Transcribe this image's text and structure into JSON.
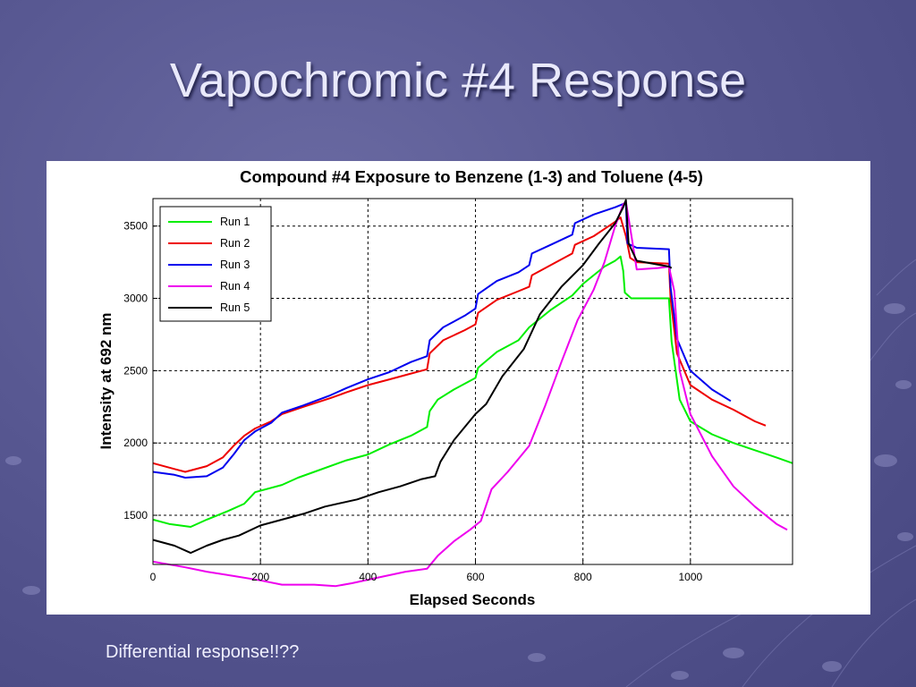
{
  "slide": {
    "title": "Vapochromic #4 Response",
    "footnote": "Differential response!!??"
  },
  "colors": {
    "background": "#585892",
    "Run 1": "#00ee00",
    "Run 2": "#ee0000",
    "Run 3": "#0000ee",
    "Run 4": "#ee00ee",
    "Run 5": "#000000"
  },
  "chart_data": {
    "type": "line",
    "title": "Compound #4 Exposure to Benzene (1-3) and Toluene (4-5)",
    "xlabel": "Elapsed Seconds",
    "ylabel": "Intensity at 692 nm",
    "xlim": [
      0,
      1190
    ],
    "ylim": [
      1160,
      3690
    ],
    "xticks": [
      0,
      200,
      400,
      600,
      800,
      1000
    ],
    "yticks": [
      1500,
      2000,
      2500,
      3000,
      3500
    ],
    "grid": true,
    "legend_position": "top-left",
    "series": [
      {
        "name": "Run 1",
        "color": "#00ee00",
        "points": [
          [
            0,
            1470
          ],
          [
            30,
            1440
          ],
          [
            70,
            1420
          ],
          [
            100,
            1470
          ],
          [
            140,
            1530
          ],
          [
            170,
            1580
          ],
          [
            190,
            1660
          ],
          [
            240,
            1710
          ],
          [
            270,
            1760
          ],
          [
            300,
            1800
          ],
          [
            360,
            1880
          ],
          [
            400,
            1920
          ],
          [
            440,
            1990
          ],
          [
            480,
            2050
          ],
          [
            510,
            2110
          ],
          [
            515,
            2220
          ],
          [
            530,
            2300
          ],
          [
            560,
            2370
          ],
          [
            600,
            2450
          ],
          [
            605,
            2520
          ],
          [
            640,
            2630
          ],
          [
            680,
            2710
          ],
          [
            700,
            2800
          ],
          [
            740,
            2920
          ],
          [
            780,
            3020
          ],
          [
            800,
            3100
          ],
          [
            840,
            3220
          ],
          [
            860,
            3260
          ],
          [
            870,
            3290
          ],
          [
            875,
            3190
          ],
          [
            878,
            3040
          ],
          [
            890,
            3000
          ],
          [
            960,
            3000
          ],
          [
            965,
            2700
          ],
          [
            980,
            2300
          ],
          [
            1000,
            2150
          ],
          [
            1040,
            2060
          ],
          [
            1080,
            2000
          ],
          [
            1120,
            1950
          ],
          [
            1160,
            1900
          ],
          [
            1190,
            1860
          ]
        ]
      },
      {
        "name": "Run 2",
        "color": "#ee0000",
        "points": [
          [
            0,
            1860
          ],
          [
            40,
            1820
          ],
          [
            60,
            1800
          ],
          [
            100,
            1840
          ],
          [
            130,
            1900
          ],
          [
            150,
            1980
          ],
          [
            170,
            2050
          ],
          [
            190,
            2100
          ],
          [
            220,
            2150
          ],
          [
            240,
            2200
          ],
          [
            280,
            2250
          ],
          [
            330,
            2310
          ],
          [
            360,
            2350
          ],
          [
            400,
            2400
          ],
          [
            440,
            2440
          ],
          [
            480,
            2480
          ],
          [
            510,
            2510
          ],
          [
            515,
            2620
          ],
          [
            540,
            2710
          ],
          [
            580,
            2780
          ],
          [
            600,
            2820
          ],
          [
            605,
            2900
          ],
          [
            640,
            2990
          ],
          [
            680,
            3050
          ],
          [
            700,
            3080
          ],
          [
            705,
            3160
          ],
          [
            740,
            3230
          ],
          [
            780,
            3310
          ],
          [
            785,
            3370
          ],
          [
            820,
            3430
          ],
          [
            860,
            3530
          ],
          [
            870,
            3560
          ],
          [
            880,
            3430
          ],
          [
            888,
            3280
          ],
          [
            900,
            3250
          ],
          [
            960,
            3240
          ],
          [
            963,
            3000
          ],
          [
            975,
            2620
          ],
          [
            1000,
            2400
          ],
          [
            1040,
            2300
          ],
          [
            1080,
            2230
          ],
          [
            1120,
            2150
          ],
          [
            1140,
            2120
          ]
        ]
      },
      {
        "name": "Run 3",
        "color": "#0000ee",
        "points": [
          [
            0,
            1800
          ],
          [
            40,
            1780
          ],
          [
            60,
            1760
          ],
          [
            100,
            1770
          ],
          [
            130,
            1830
          ],
          [
            150,
            1920
          ],
          [
            170,
            2020
          ],
          [
            190,
            2080
          ],
          [
            220,
            2140
          ],
          [
            240,
            2210
          ],
          [
            280,
            2260
          ],
          [
            330,
            2330
          ],
          [
            360,
            2380
          ],
          [
            400,
            2440
          ],
          [
            440,
            2490
          ],
          [
            480,
            2560
          ],
          [
            510,
            2600
          ],
          [
            515,
            2710
          ],
          [
            540,
            2800
          ],
          [
            580,
            2880
          ],
          [
            600,
            2930
          ],
          [
            605,
            3030
          ],
          [
            640,
            3120
          ],
          [
            680,
            3180
          ],
          [
            700,
            3230
          ],
          [
            705,
            3310
          ],
          [
            740,
            3370
          ],
          [
            780,
            3440
          ],
          [
            785,
            3520
          ],
          [
            820,
            3580
          ],
          [
            860,
            3630
          ],
          [
            880,
            3660
          ],
          [
            883,
            3380
          ],
          [
            900,
            3350
          ],
          [
            960,
            3340
          ],
          [
            963,
            3080
          ],
          [
            975,
            2720
          ],
          [
            1000,
            2500
          ],
          [
            1040,
            2370
          ],
          [
            1075,
            2290
          ]
        ]
      },
      {
        "name": "Run 4",
        "color": "#ee00ee",
        "points": [
          [
            0,
            1180
          ],
          [
            60,
            1140
          ],
          [
            100,
            1110
          ],
          [
            150,
            1080
          ],
          [
            200,
            1050
          ],
          [
            240,
            1020
          ],
          [
            300,
            1020
          ],
          [
            340,
            1010
          ],
          [
            370,
            1030
          ],
          [
            420,
            1070
          ],
          [
            470,
            1110
          ],
          [
            510,
            1130
          ],
          [
            530,
            1220
          ],
          [
            560,
            1320
          ],
          [
            590,
            1400
          ],
          [
            610,
            1460
          ],
          [
            630,
            1680
          ],
          [
            660,
            1800
          ],
          [
            700,
            1980
          ],
          [
            730,
            2260
          ],
          [
            760,
            2560
          ],
          [
            790,
            2850
          ],
          [
            820,
            3060
          ],
          [
            840,
            3250
          ],
          [
            860,
            3500
          ],
          [
            875,
            3650
          ],
          [
            880,
            3670
          ],
          [
            890,
            3440
          ],
          [
            900,
            3200
          ],
          [
            940,
            3210
          ],
          [
            960,
            3220
          ],
          [
            970,
            3050
          ],
          [
            980,
            2500
          ],
          [
            1000,
            2200
          ],
          [
            1040,
            1910
          ],
          [
            1080,
            1700
          ],
          [
            1120,
            1560
          ],
          [
            1160,
            1440
          ],
          [
            1180,
            1400
          ]
        ]
      },
      {
        "name": "Run 5",
        "color": "#000000",
        "points": [
          [
            0,
            1330
          ],
          [
            40,
            1290
          ],
          [
            70,
            1240
          ],
          [
            100,
            1290
          ],
          [
            130,
            1330
          ],
          [
            160,
            1360
          ],
          [
            200,
            1430
          ],
          [
            240,
            1470
          ],
          [
            280,
            1510
          ],
          [
            320,
            1560
          ],
          [
            380,
            1610
          ],
          [
            420,
            1660
          ],
          [
            460,
            1700
          ],
          [
            500,
            1750
          ],
          [
            525,
            1770
          ],
          [
            535,
            1870
          ],
          [
            560,
            2020
          ],
          [
            600,
            2200
          ],
          [
            620,
            2270
          ],
          [
            650,
            2460
          ],
          [
            690,
            2650
          ],
          [
            720,
            2890
          ],
          [
            760,
            3080
          ],
          [
            800,
            3230
          ],
          [
            830,
            3380
          ],
          [
            860,
            3520
          ],
          [
            875,
            3630
          ],
          [
            880,
            3680
          ],
          [
            885,
            3380
          ],
          [
            900,
            3260
          ],
          [
            960,
            3220
          ],
          [
            965,
            3210
          ]
        ]
      }
    ]
  }
}
